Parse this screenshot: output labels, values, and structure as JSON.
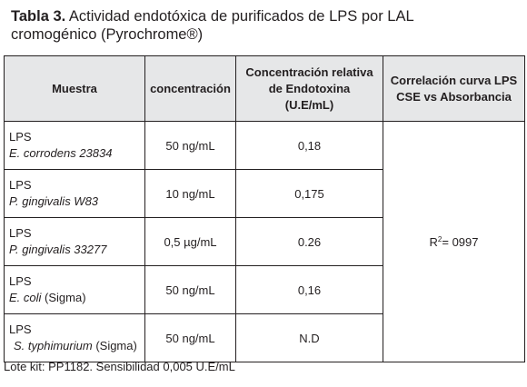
{
  "caption": {
    "label": "Tabla 3.",
    "text_line1": " Actividad endotóxica de purificados de LPS por LAL",
    "text_line2": "cromogénico (Pyrochrome®)"
  },
  "table": {
    "headers": {
      "muestra": "Muestra",
      "concentracion": "concentración",
      "relativa_l1": "Concentración relativa",
      "relativa_l2": "de Endotoxina",
      "relativa_l3": "(U.E/mL)",
      "correlacion_l1": "Correlación curva LPS",
      "correlacion_l2": "CSE vs Absorbancia"
    },
    "rows": [
      {
        "type": "LPS",
        "strain": "E. corrodens 23834",
        "suffix": "",
        "concentration": "50 ng/mL",
        "relative": "0,18"
      },
      {
        "type": "LPS",
        "strain": "P. gingivalis W83",
        "suffix": "",
        "concentration": "10 ng/mL",
        "relative": "0,175"
      },
      {
        "type": "LPS",
        "strain": "P. gingivalis 33277",
        "suffix": "",
        "concentration": "0,5 µg/mL",
        "relative": "0.26"
      },
      {
        "type": "LPS",
        "strain": "E. coli",
        "suffix": " (Sigma)",
        "concentration": "50 ng/mL",
        "relative": "0,16"
      },
      {
        "type": "LPS",
        "strain": "S. typhimurium",
        "suffix": " (Sigma)",
        "concentration": "50 ng/mL",
        "relative": "N.D"
      }
    ],
    "correlation": {
      "prefix": "R",
      "superscript": "2",
      "value": "= 0997"
    }
  },
  "footnote": "Lote kit: PP1182. Sensibilidad 0,005 U.E/mL"
}
